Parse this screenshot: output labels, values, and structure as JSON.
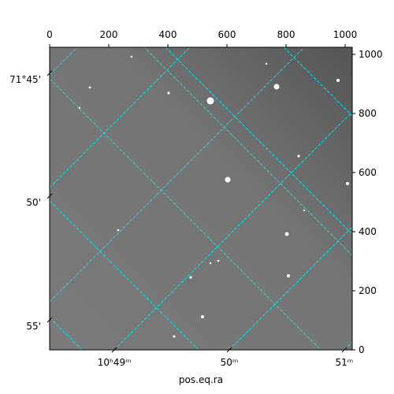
{
  "chart_data": {
    "type": "image",
    "xlabel": "pos.eq.ra",
    "xlim": [
      0,
      1024
    ],
    "ylim": [
      0,
      1024
    ],
    "xticks": [
      0,
      200,
      400,
      600,
      800,
      1000
    ],
    "yticks": [
      0,
      200,
      400,
      600,
      800,
      1000
    ],
    "ra_ticks": [
      {
        "value": 219,
        "label": "10ʰ49ᵐ"
      },
      {
        "value": 608,
        "label": "50ᵐ"
      },
      {
        "value": 997,
        "label": "51ᵐ"
      }
    ],
    "dec_ticks": [
      {
        "value": 915,
        "label": "71°45'"
      },
      {
        "value": 499,
        "label": "50'"
      },
      {
        "value": 80,
        "label": "55'"
      }
    ],
    "grid_color": "#00e5e5"
  }
}
